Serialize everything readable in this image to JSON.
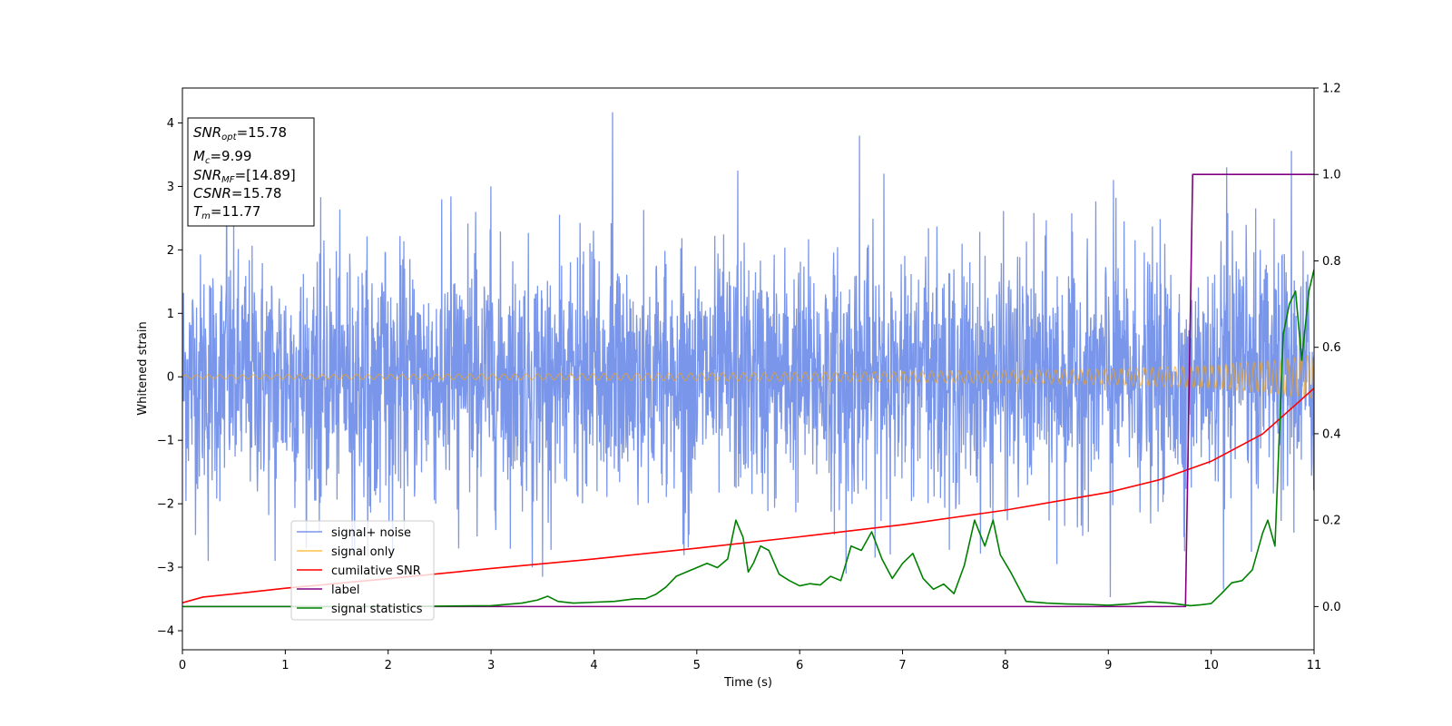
{
  "chart_data": {
    "type": "line",
    "xlabel": "Time (s)",
    "ylabel": "Whitened strain",
    "xlim": [
      0,
      11
    ],
    "ylim": [
      -4.3,
      4.55
    ],
    "y2lim": [
      -0.1,
      1.2
    ],
    "x_ticks": [
      0,
      1,
      2,
      3,
      4,
      5,
      6,
      7,
      8,
      9,
      10,
      11
    ],
    "y_ticks": [
      -4,
      -3,
      -2,
      -1,
      0,
      1,
      2,
      3,
      4
    ],
    "y2_ticks": [
      0.0,
      0.2,
      0.4,
      0.6,
      0.8,
      1.0,
      1.2
    ],
    "grid": false,
    "legend_position": "lower-left",
    "annotation_box": [
      {
        "var": "SNR",
        "sub": "opt",
        "value": "=15.78"
      },
      {
        "var": "M",
        "sub": "c",
        "value": "=9.99"
      },
      {
        "var": "SNR",
        "sub": "MF",
        "value": "=[14.89]"
      },
      {
        "var": "CSNR",
        "sub": "",
        "value": "=15.78"
      },
      {
        "var": "T",
        "sub": "m",
        "value": "=11.77"
      }
    ],
    "series": [
      {
        "name": "signal+ noise",
        "color": "#4169e1",
        "axis": "left",
        "kind": "noisy-band",
        "envelope_x": [
          0,
          1,
          2,
          3,
          4,
          5,
          6,
          7,
          8,
          9,
          10,
          11
        ],
        "typical_amplitude": 1.6,
        "peaks": [
          {
            "x": 4.18,
            "y": 4.17
          },
          {
            "x": 6.58,
            "y": 3.8
          },
          {
            "x": 10.78,
            "y": 3.56
          },
          {
            "x": 5.4,
            "y": 3.25
          },
          {
            "x": 10.15,
            "y": 3.3
          },
          {
            "x": 6.82,
            "y": 3.2
          },
          {
            "x": 0.43,
            "y": 3.14
          },
          {
            "x": 9.05,
            "y": 3.1
          },
          {
            "x": 3.0,
            "y": 3.0
          },
          {
            "x": 3.4,
            "y": -3.0
          },
          {
            "x": 3.5,
            "y": -3.15
          },
          {
            "x": 9.02,
            "y": -3.47
          },
          {
            "x": 10.12,
            "y": -3.35
          },
          {
            "x": 0.25,
            "y": -2.9
          },
          {
            "x": 0.9,
            "y": -2.9
          },
          {
            "x": 6.45,
            "y": -3.1
          },
          {
            "x": 1.65,
            "y": -2.8
          },
          {
            "x": 8.5,
            "y": -2.95
          }
        ]
      },
      {
        "name": "signal only",
        "color": "#ffa500",
        "axis": "left",
        "kind": "chirp",
        "envelope_x": [
          0,
          2,
          4,
          6,
          8,
          9,
          10,
          10.5,
          11
        ],
        "envelope_amp": [
          0.03,
          0.04,
          0.05,
          0.07,
          0.1,
          0.12,
          0.18,
          0.24,
          0.34
        ]
      },
      {
        "name": "cumilative SNR",
        "color": "#ff0000",
        "axis": "left",
        "kind": "line",
        "x": [
          0,
          0.2,
          0.5,
          1,
          2,
          3,
          4,
          5,
          6,
          7,
          8,
          9,
          9.5,
          10,
          10.5,
          11
        ],
        "y": [
          -3.56,
          -3.47,
          -3.42,
          -3.33,
          -3.18,
          -3.02,
          -2.87,
          -2.7,
          -2.52,
          -2.33,
          -2.1,
          -1.82,
          -1.62,
          -1.33,
          -0.9,
          -0.18
        ]
      },
      {
        "name": "label",
        "color": "#800080",
        "axis": "right",
        "kind": "line",
        "x": [
          0,
          9.75,
          9.82,
          11
        ],
        "y": [
          0.0,
          0.0,
          1.0,
          1.0
        ]
      },
      {
        "name": "signal statistics",
        "color": "#008000",
        "axis": "right",
        "kind": "line",
        "x": [
          0,
          1,
          2,
          3,
          3.3,
          3.45,
          3.55,
          3.65,
          3.8,
          4,
          4.2,
          4.4,
          4.5,
          4.6,
          4.7,
          4.8,
          4.9,
          5.0,
          5.1,
          5.2,
          5.3,
          5.38,
          5.45,
          5.5,
          5.55,
          5.62,
          5.7,
          5.8,
          5.9,
          6.0,
          6.1,
          6.2,
          6.3,
          6.4,
          6.5,
          6.6,
          6.7,
          6.8,
          6.9,
          7.0,
          7.1,
          7.2,
          7.3,
          7.4,
          7.5,
          7.6,
          7.7,
          7.75,
          7.8,
          7.88,
          7.95,
          8.05,
          8.2,
          8.4,
          8.6,
          8.8,
          9.0,
          9.2,
          9.4,
          9.6,
          9.8,
          9.9,
          10.0,
          10.1,
          10.2,
          10.3,
          10.4,
          10.5,
          10.55,
          10.62,
          10.7,
          10.76,
          10.82,
          10.88,
          10.95,
          11.0
        ],
        "y": [
          0.0,
          0.0,
          0.0,
          0.002,
          0.008,
          0.015,
          0.024,
          0.012,
          0.008,
          0.01,
          0.012,
          0.018,
          0.018,
          0.028,
          0.045,
          0.07,
          0.08,
          0.09,
          0.1,
          0.09,
          0.11,
          0.2,
          0.16,
          0.08,
          0.1,
          0.14,
          0.13,
          0.075,
          0.06,
          0.048,
          0.053,
          0.05,
          0.07,
          0.06,
          0.14,
          0.13,
          0.173,
          0.11,
          0.065,
          0.1,
          0.123,
          0.065,
          0.04,
          0.052,
          0.03,
          0.095,
          0.2,
          0.17,
          0.14,
          0.2,
          0.12,
          0.08,
          0.012,
          0.008,
          0.006,
          0.005,
          0.003,
          0.006,
          0.011,
          0.008,
          0.002,
          0.004,
          0.007,
          0.03,
          0.055,
          0.06,
          0.085,
          0.17,
          0.2,
          0.14,
          0.63,
          0.7,
          0.73,
          0.57,
          0.73,
          0.78
        ]
      }
    ]
  }
}
